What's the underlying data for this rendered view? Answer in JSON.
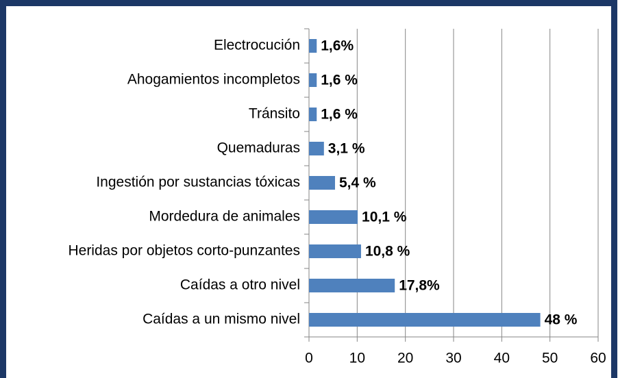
{
  "chart_data": {
    "type": "barh",
    "categories": [
      "Electrocución",
      "Ahogamientos incompletos",
      "Tránsito",
      "Quemaduras",
      "Ingestión por sustancias tóxicas",
      "Mordedura de animales",
      "Heridas por objetos corto-punzantes",
      "Caídas a otro nivel",
      "Caídas a un mismo nivel"
    ],
    "values": [
      1.6,
      1.6,
      1.6,
      3.1,
      5.4,
      10.1,
      10.8,
      17.8,
      48
    ],
    "value_labels": [
      "1,6%",
      "1,6 %",
      "1,6 %",
      "3,1 %",
      "5,4 %",
      "10,1 %",
      "10,8 %",
      "17,8%",
      "48 %"
    ],
    "color": "#4f81bd",
    "xlim": [
      0,
      60
    ],
    "xticks": [
      0,
      10,
      20,
      30,
      40,
      50,
      60
    ],
    "grid": true
  }
}
